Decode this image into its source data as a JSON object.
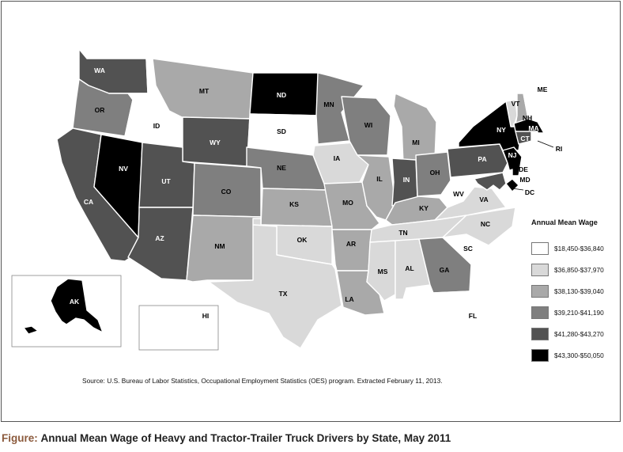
{
  "legend": {
    "title": "Annual Mean Wage",
    "bins": [
      {
        "label": "$18,450-$36,840",
        "color": "#ffffff"
      },
      {
        "label": "$36,850-$37,970",
        "color": "#d9d9d9"
      },
      {
        "label": "$38,130-$39,040",
        "color": "#a9a9a9"
      },
      {
        "label": "$39,210-$41,190",
        "color": "#7f7f7f"
      },
      {
        "label": "$41,280-$43,270",
        "color": "#525252"
      },
      {
        "label": "$43,300-$50,050",
        "color": "#000000"
      }
    ]
  },
  "states": [
    {
      "abbr": "WA",
      "bin": 4
    },
    {
      "abbr": "OR",
      "bin": 3
    },
    {
      "abbr": "CA",
      "bin": 4
    },
    {
      "abbr": "ID",
      "bin": 0
    },
    {
      "abbr": "NV",
      "bin": 5
    },
    {
      "abbr": "MT",
      "bin": 2
    },
    {
      "abbr": "WY",
      "bin": 4
    },
    {
      "abbr": "UT",
      "bin": 4
    },
    {
      "abbr": "AZ",
      "bin": 4
    },
    {
      "abbr": "CO",
      "bin": 3
    },
    {
      "abbr": "NM",
      "bin": 2
    },
    {
      "abbr": "ND",
      "bin": 5
    },
    {
      "abbr": "SD",
      "bin": 0
    },
    {
      "abbr": "NE",
      "bin": 3
    },
    {
      "abbr": "KS",
      "bin": 2
    },
    {
      "abbr": "OK",
      "bin": 1
    },
    {
      "abbr": "TX",
      "bin": 1
    },
    {
      "abbr": "MN",
      "bin": 3
    },
    {
      "abbr": "IA",
      "bin": 1
    },
    {
      "abbr": "MO",
      "bin": 2
    },
    {
      "abbr": "AR",
      "bin": 2
    },
    {
      "abbr": "LA",
      "bin": 2
    },
    {
      "abbr": "WI",
      "bin": 3
    },
    {
      "abbr": "IL",
      "bin": 2
    },
    {
      "abbr": "MI",
      "bin": 2
    },
    {
      "abbr": "IN",
      "bin": 4
    },
    {
      "abbr": "OH",
      "bin": 3
    },
    {
      "abbr": "KY",
      "bin": 2
    },
    {
      "abbr": "TN",
      "bin": 1
    },
    {
      "abbr": "MS",
      "bin": 1
    },
    {
      "abbr": "AL",
      "bin": 1
    },
    {
      "abbr": "GA",
      "bin": 3
    },
    {
      "abbr": "FL",
      "bin": 0
    },
    {
      "abbr": "SC",
      "bin": 0
    },
    {
      "abbr": "NC",
      "bin": 1
    },
    {
      "abbr": "VA",
      "bin": 1
    },
    {
      "abbr": "WV",
      "bin": 0
    },
    {
      "abbr": "PA",
      "bin": 4
    },
    {
      "abbr": "NY",
      "bin": 5
    },
    {
      "abbr": "VT",
      "bin": 1
    },
    {
      "abbr": "NH",
      "bin": 2
    },
    {
      "abbr": "ME",
      "bin": 0
    },
    {
      "abbr": "MA",
      "bin": 5
    },
    {
      "abbr": "RI",
      "bin": 0
    },
    {
      "abbr": "CT",
      "bin": 4
    },
    {
      "abbr": "NJ",
      "bin": 5
    },
    {
      "abbr": "DE",
      "bin": 0
    },
    {
      "abbr": "MD",
      "bin": 4
    },
    {
      "abbr": "DC",
      "bin": 5
    },
    {
      "abbr": "AK",
      "bin": 5
    },
    {
      "abbr": "HI",
      "bin": 0
    }
  ],
  "source": "Source: U.S. Bureau of Labor Statistics, Occupational Employment Statistics (OES) program. Extracted February 11, 2013.",
  "caption": {
    "prefix": "Figure:",
    "text": "Annual Mean Wage of Heavy and Tractor-Trailer Truck Drivers by State, May 2011"
  }
}
